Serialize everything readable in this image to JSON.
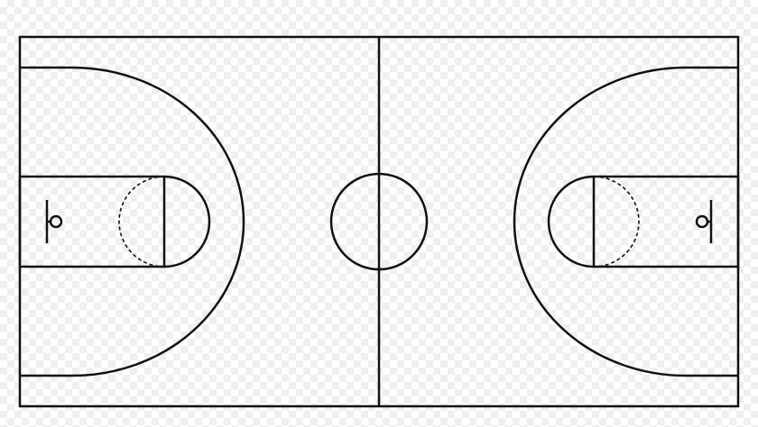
{
  "diagram": {
    "subject": "basketball-court",
    "line_color": "#111111",
    "background_pattern": "transparency-checkerboard"
  }
}
